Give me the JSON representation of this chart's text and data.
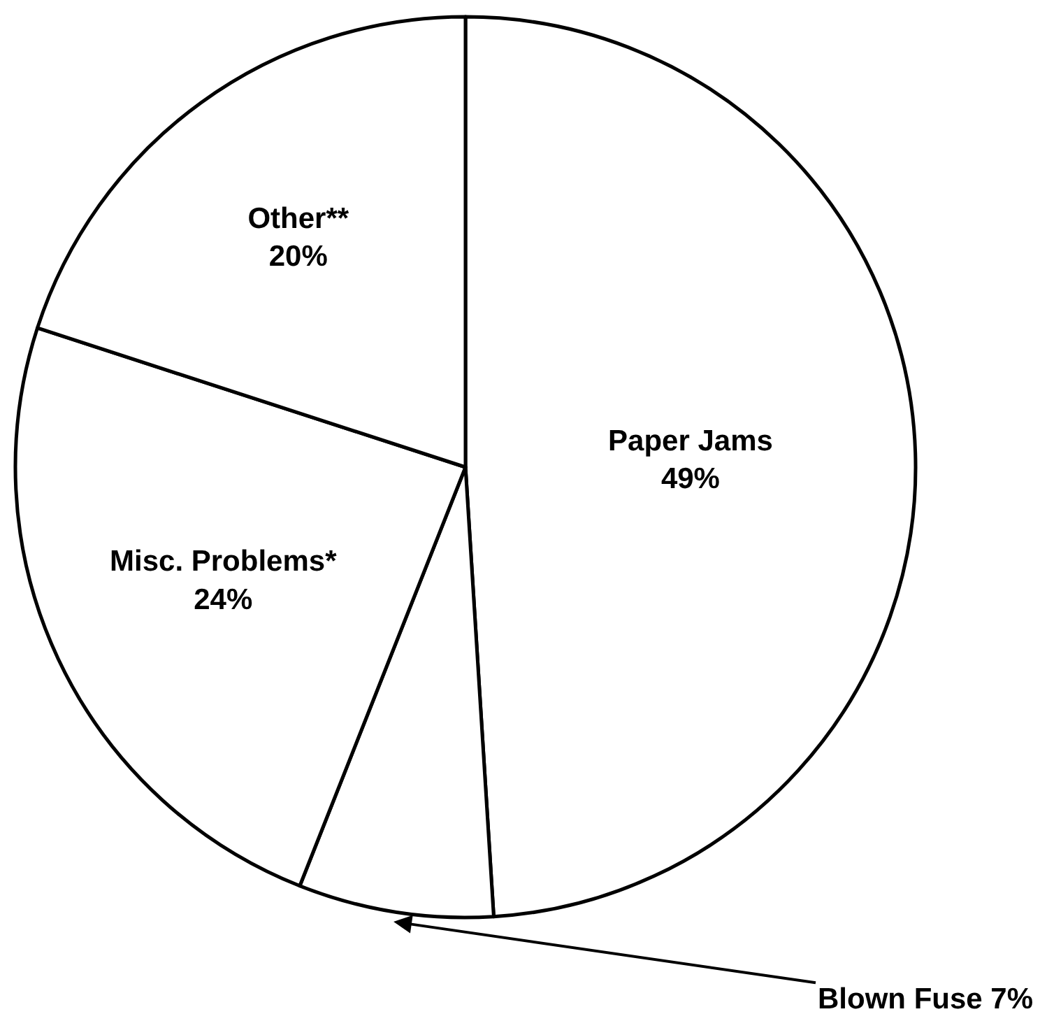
{
  "chart_data": {
    "type": "pie",
    "categories": [
      "Paper Jams",
      "Blown Fuse",
      "Misc. Problems*",
      "Other**"
    ],
    "values": [
      49,
      7,
      24,
      20
    ],
    "colors": [
      "#ffffff",
      "#ffffff",
      "#ffffff",
      "#ffffff"
    ],
    "value_labels": [
      "49%",
      "7%",
      "24%",
      "20%"
    ]
  }
}
